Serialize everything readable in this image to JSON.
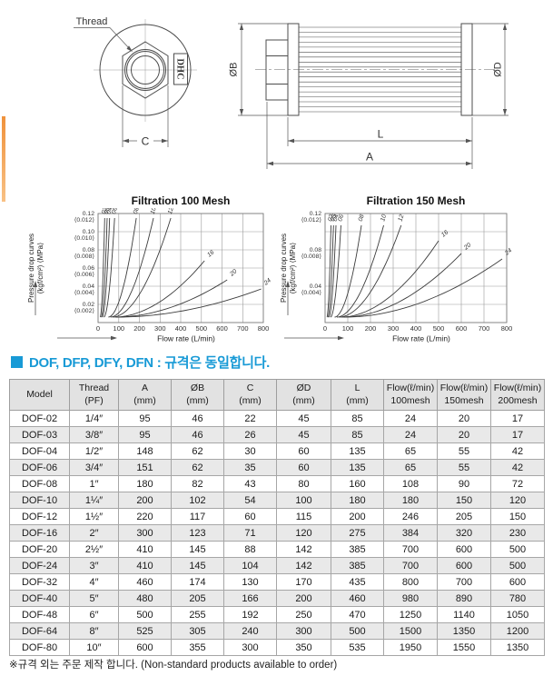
{
  "page": {
    "accent_color": "#f0923c",
    "heading_color": "#189ad6"
  },
  "drawings": {
    "front_view": {
      "thread_label": "Thread",
      "brand_label": "DHC",
      "dim_c": "C"
    },
    "side_view": {
      "dim_b": "ØB",
      "dim_d": "ØD",
      "dim_l": "L",
      "dim_a": "A"
    }
  },
  "section_heading": {
    "text": "DOF, DFP, DFY, DFN : 규격은 동일합니다."
  },
  "chart_data": [
    {
      "type": "line",
      "title": "Filtration 100 Mesh",
      "xlabel": "Flow rate (L/min)",
      "ylabel": "Pressure drop curves",
      "ylabel2": "(kgf/cm²) ⟨MPa⟩",
      "xlim": [
        0,
        800
      ],
      "ylim": [
        0,
        0.12
      ],
      "grid": true,
      "x_ticks": [
        0,
        100,
        200,
        300,
        400,
        500,
        600,
        700,
        800
      ],
      "y_ticks": [
        {
          "value": 0.02,
          "label": "0.02",
          "sub": "⟨0.002⟩"
        },
        {
          "value": 0.04,
          "label": "0.04",
          "sub": "⟨0.004⟩"
        },
        {
          "value": 0.06,
          "label": "0.06",
          "sub": "⟨0.006⟩"
        },
        {
          "value": 0.08,
          "label": "0.08",
          "sub": "⟨0.008⟩"
        },
        {
          "value": 0.1,
          "label": "0.10",
          "sub": "⟨0.010⟩"
        },
        {
          "value": 0.12,
          "label": "0.12",
          "sub": "⟨0.012⟩"
        }
      ],
      "start_pressure": 0.006,
      "series": [
        {
          "name": "02",
          "start_flow": 10,
          "end_flow": 32,
          "end_pressure": 0.115
        },
        {
          "name": "03",
          "start_flow": 15,
          "end_flow": 44,
          "end_pressure": 0.115
        },
        {
          "name": "04",
          "start_flow": 20,
          "end_flow": 56,
          "end_pressure": 0.115
        },
        {
          "name": "06",
          "start_flow": 28,
          "end_flow": 80,
          "end_pressure": 0.115
        },
        {
          "name": "08",
          "start_flow": 50,
          "end_flow": 185,
          "end_pressure": 0.115
        },
        {
          "name": "10",
          "start_flow": 60,
          "end_flow": 268,
          "end_pressure": 0.115
        },
        {
          "name": "12",
          "start_flow": 70,
          "end_flow": 352,
          "end_pressure": 0.115
        },
        {
          "name": "16",
          "start_flow": 80,
          "end_flow": 515,
          "end_pressure": 0.068
        },
        {
          "name": "20",
          "start_flow": 88,
          "end_flow": 625,
          "end_pressure": 0.047
        },
        {
          "name": "24",
          "start_flow": 95,
          "end_flow": 790,
          "end_pressure": 0.037
        }
      ]
    },
    {
      "type": "line",
      "title": "Filtration 150 Mesh",
      "xlabel": "Flow rate (L/min)",
      "ylabel": "Pressure drop curves",
      "ylabel2": "(kgf/cm²) ⟨MPa⟩",
      "xlim": [
        0,
        800
      ],
      "ylim": [
        0,
        0.12
      ],
      "grid": true,
      "x_ticks": [
        0,
        100,
        200,
        300,
        400,
        500,
        600,
        700,
        800
      ],
      "y_ticks": [
        {
          "value": 0.04,
          "label": "0.04",
          "sub": "⟨0.004⟩"
        },
        {
          "value": 0.08,
          "label": "0.08",
          "sub": "⟨0.008⟩"
        },
        {
          "value": 0.12,
          "label": "0.12",
          "sub": "⟨0.012⟩"
        }
      ],
      "start_pressure": 0.006,
      "series": [
        {
          "name": "02",
          "start_flow": 8,
          "end_flow": 26,
          "end_pressure": 0.107
        },
        {
          "name": "03",
          "start_flow": 12,
          "end_flow": 37,
          "end_pressure": 0.107
        },
        {
          "name": "04",
          "start_flow": 17,
          "end_flow": 48,
          "end_pressure": 0.107
        },
        {
          "name": "06",
          "start_flow": 24,
          "end_flow": 70,
          "end_pressure": 0.107
        },
        {
          "name": "08",
          "start_flow": 42,
          "end_flow": 160,
          "end_pressure": 0.107
        },
        {
          "name": "10",
          "start_flow": 52,
          "end_flow": 258,
          "end_pressure": 0.107
        },
        {
          "name": "12",
          "start_flow": 62,
          "end_flow": 335,
          "end_pressure": 0.107
        },
        {
          "name": "16",
          "start_flow": 72,
          "end_flow": 500,
          "end_pressure": 0.09
        },
        {
          "name": "20",
          "start_flow": 82,
          "end_flow": 600,
          "end_pressure": 0.076
        },
        {
          "name": "24",
          "start_flow": 90,
          "end_flow": 780,
          "end_pressure": 0.07
        }
      ]
    }
  ],
  "table": {
    "headers": [
      "Model",
      "Thread\n(PF)",
      "A\n(mm)",
      "ØB\n(mm)",
      "C\n(mm)",
      "ØD\n(mm)",
      "L\n(mm)",
      "Flow(ℓ/min)\n100mesh",
      "Flow(ℓ/min)\n150mesh",
      "Flow(ℓ/min)\n200mesh"
    ],
    "rows": [
      [
        "DOF-02",
        "1/4″",
        "95",
        "46",
        "22",
        "45",
        "85",
        "24",
        "20",
        "17"
      ],
      [
        "DOF-03",
        "3/8″",
        "95",
        "46",
        "26",
        "45",
        "85",
        "24",
        "20",
        "17"
      ],
      [
        "DOF-04",
        "1/2″",
        "148",
        "62",
        "30",
        "60",
        "135",
        "65",
        "55",
        "42"
      ],
      [
        "DOF-06",
        "3/4″",
        "151",
        "62",
        "35",
        "60",
        "135",
        "65",
        "55",
        "42"
      ],
      [
        "DOF-08",
        "1″",
        "180",
        "82",
        "43",
        "80",
        "160",
        "108",
        "90",
        "72"
      ],
      [
        "DOF-10",
        "1¼″",
        "200",
        "102",
        "54",
        "100",
        "180",
        "180",
        "150",
        "120"
      ],
      [
        "DOF-12",
        "1½″",
        "220",
        "117",
        "60",
        "115",
        "200",
        "246",
        "205",
        "150"
      ],
      [
        "DOF-16",
        "2″",
        "300",
        "123",
        "71",
        "120",
        "275",
        "384",
        "320",
        "230"
      ],
      [
        "DOF-20",
        "2½″",
        "410",
        "145",
        "88",
        "142",
        "385",
        "700",
        "600",
        "500"
      ],
      [
        "DOF-24",
        "3″",
        "410",
        "145",
        "104",
        "142",
        "385",
        "700",
        "600",
        "500"
      ],
      [
        "DOF-32",
        "4″",
        "460",
        "174",
        "130",
        "170",
        "435",
        "800",
        "700",
        "600"
      ],
      [
        "DOF-40",
        "5″",
        "480",
        "205",
        "166",
        "200",
        "460",
        "980",
        "890",
        "780"
      ],
      [
        "DOF-48",
        "6″",
        "500",
        "255",
        "192",
        "250",
        "470",
        "1250",
        "1140",
        "1050"
      ],
      [
        "DOF-64",
        "8″",
        "525",
        "305",
        "240",
        "300",
        "500",
        "1500",
        "1350",
        "1200"
      ],
      [
        "DOF-80",
        "10″",
        "600",
        "355",
        "300",
        "350",
        "535",
        "1950",
        "1550",
        "1350"
      ]
    ]
  },
  "footnote": "※규격 외는 주문 제작 합니다. (Non-standard products available to order)"
}
